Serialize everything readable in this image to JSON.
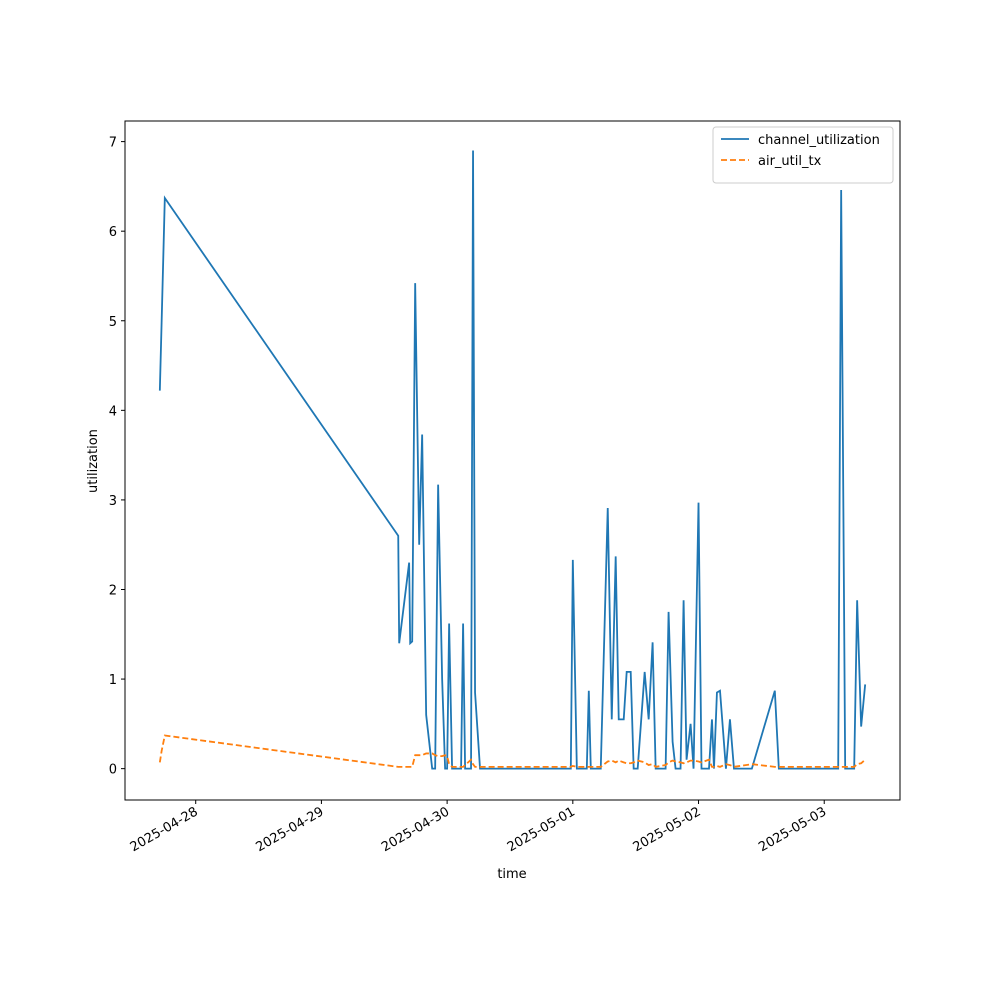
{
  "chart_data": {
    "type": "line",
    "xlabel": "time",
    "ylabel": "utilization",
    "x": [
      "2025-04-27T17:09",
      "2025-04-27T17:30",
      "2025-04-27T18:06",
      "2025-04-29T14:40",
      "2025-04-29T14:51",
      "2025-04-29T16:45",
      "2025-04-29T16:57",
      "2025-04-29T17:20",
      "2025-04-29T17:54",
      "2025-04-29T18:40",
      "2025-04-29T19:14",
      "2025-04-29T20:00",
      "2025-04-29T21:09",
      "2025-04-29T21:43",
      "2025-04-29T22:17",
      "2025-04-29T23:03",
      "2025-04-29T23:37",
      "2025-04-30T00:00",
      "2025-04-30T00:23",
      "2025-04-30T00:57",
      "2025-04-30T02:40",
      "2025-04-30T03:03",
      "2025-04-30T03:26",
      "2025-04-30T04:34",
      "2025-04-30T04:57",
      "2025-04-30T05:20",
      "2025-04-30T06:17",
      "2025-04-30T23:37",
      "2025-05-01T00:00",
      "2025-05-01T00:46",
      "2025-05-01T02:40",
      "2025-05-01T03:03",
      "2025-05-01T03:26",
      "2025-05-01T05:20",
      "2025-05-01T06:40",
      "2025-05-01T07:26",
      "2025-05-01T08:11",
      "2025-05-01T08:46",
      "2025-05-01T09:43",
      "2025-05-01T10:17",
      "2025-05-01T11:03",
      "2025-05-01T11:37",
      "2025-05-01T12:23",
      "2025-05-01T13:43",
      "2025-05-01T14:29",
      "2025-05-01T15:14",
      "2025-05-01T15:49",
      "2025-05-01T17:43",
      "2025-05-01T18:17",
      "2025-05-01T19:03",
      "2025-05-01T19:37",
      "2025-05-01T20:34",
      "2025-05-01T21:09",
      "2025-05-01T21:43",
      "2025-05-01T22:29",
      "2025-05-01T23:03",
      "2025-05-02T00:00",
      "2025-05-02T00:34",
      "2025-05-02T02:00",
      "2025-05-02T02:34",
      "2025-05-02T02:57",
      "2025-05-02T03:31",
      "2025-05-02T04:06",
      "2025-05-02T05:14",
      "2025-05-02T06:00",
      "2025-05-02T06:46",
      "2025-05-02T10:11",
      "2025-05-02T14:34",
      "2025-05-02T15:20",
      "2025-05-03T02:40",
      "2025-05-03T03:14",
      "2025-05-03T04:00",
      "2025-05-03T05:43",
      "2025-05-03T06:17",
      "2025-05-03T07:03",
      "2025-05-03T07:49"
    ],
    "series": [
      {
        "name": "channel_utilization",
        "color": "#1f77b4",
        "dash": "solid",
        "values": [
          4.22,
          5.0,
          6.37,
          2.6,
          1.4,
          2.3,
          1.4,
          1.42,
          5.42,
          2.5,
          3.73,
          0.6,
          0,
          0,
          3.17,
          1.0,
          0,
          0,
          1.62,
          0,
          0,
          1.62,
          0,
          0,
          6.9,
          0.85,
          0,
          0,
          2.33,
          0,
          0,
          0.87,
          0,
          0,
          2.91,
          0.55,
          2.37,
          0.55,
          0.55,
          1.08,
          1.08,
          0,
          0,
          1.08,
          0.55,
          1.41,
          0,
          0,
          1.75,
          0.3,
          0,
          0,
          1.88,
          0.1,
          0.5,
          0,
          2.97,
          0,
          0,
          0.55,
          0,
          0.85,
          0.87,
          0,
          0.55,
          0,
          0,
          0.87,
          0,
          0,
          6.46,
          0,
          0,
          1.88,
          0.47,
          0.94
        ]
      },
      {
        "name": "air_util_tx",
        "color": "#ff7f0e",
        "dash": "dashed",
        "values": [
          0.07,
          0.2,
          0.37,
          0.02,
          0.02,
          0.02,
          0.02,
          0.02,
          0.15,
          0.15,
          0.15,
          0.17,
          0.17,
          0.15,
          0.14,
          0.14,
          0.15,
          0.14,
          0.05,
          0.02,
          0.02,
          0.02,
          0.04,
          0.1,
          0.05,
          0.02,
          0.02,
          0.02,
          0.03,
          0.02,
          0.02,
          0.02,
          0.02,
          0.02,
          0.08,
          0.09,
          0.07,
          0.09,
          0.07,
          0.06,
          0.06,
          0.07,
          0.09,
          0.07,
          0.04,
          0.05,
          0.02,
          0.04,
          0.07,
          0.09,
          0.08,
          0.07,
          0.06,
          0.07,
          0.09,
          0.09,
          0.08,
          0.07,
          0.1,
          0.02,
          0.02,
          0.03,
          0.02,
          0.05,
          0.04,
          0.02,
          0.05,
          0.02,
          0.02,
          0.02,
          0.02,
          0.02,
          0.02,
          0.05,
          0.06,
          0.1
        ]
      }
    ],
    "xlim": [
      "2025-04-27T10:30",
      "2025-05-03T14:28"
    ],
    "xticks": [
      "2025-04-28",
      "2025-04-29",
      "2025-04-30",
      "2025-05-01",
      "2025-05-02",
      "2025-05-03"
    ],
    "ylim": [
      -0.35,
      7.23
    ],
    "yticks": [
      0,
      1,
      2,
      3,
      4,
      5,
      6,
      7
    ],
    "grid": false,
    "legend": "upper right"
  }
}
